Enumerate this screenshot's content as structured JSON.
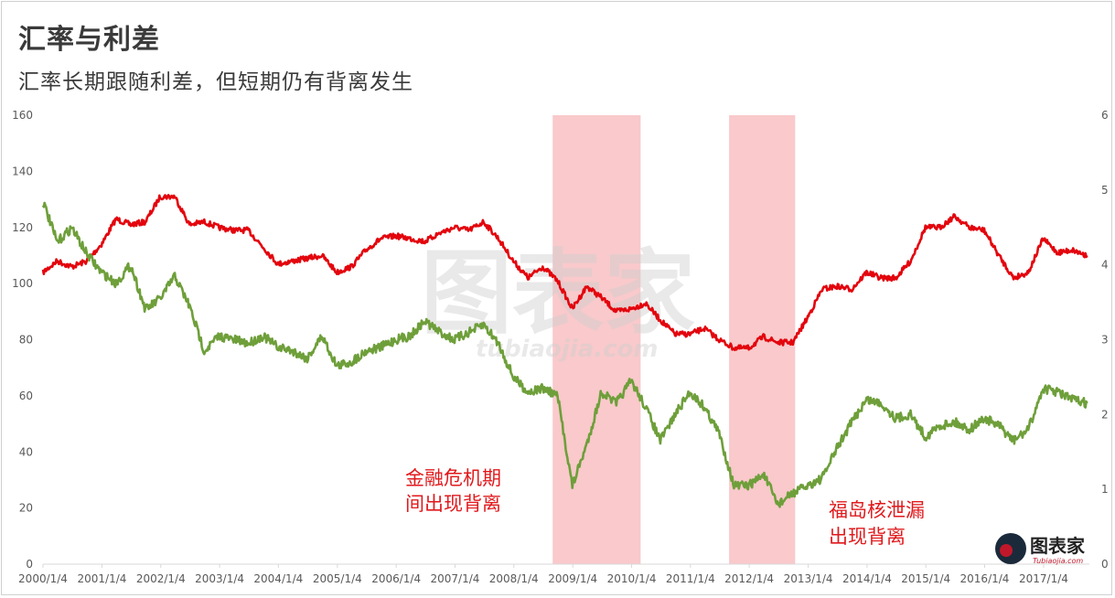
{
  "title": "汇率与利差",
  "subtitle": "汇率长期跟随利差，但短期仍有背离发生",
  "annotations": {
    "crisis": [
      "金融危机期",
      "间出现背离"
    ],
    "fukushima": [
      "福岛核泄漏",
      "出现背离"
    ]
  },
  "watermark": {
    "main": "图表家",
    "sub": "tubiaojia.com"
  },
  "logo": {
    "name": "图表家",
    "sub": "Tubiaojia.com"
  },
  "colors": {
    "fx_line": "#e3050d",
    "spread_line": "#6e9f3a",
    "highlight": "#f9c9cb",
    "annotation": "#e0191c",
    "axis": "#d9d9d9"
  },
  "chart_data": {
    "type": "line",
    "x_type": "date",
    "x_ticks": [
      "2000/1/4",
      "2001/1/4",
      "2002/1/4",
      "2003/1/4",
      "2004/1/4",
      "2005/1/4",
      "2006/1/4",
      "2007/1/4",
      "2008/1/4",
      "2009/1/4",
      "2010/1/4",
      "2011/1/4",
      "2012/1/4",
      "2013/1/4",
      "2014/1/4",
      "2015/1/4",
      "2016/1/4",
      "2017/1/4"
    ],
    "x_range": [
      "2000-01-04",
      "2017-10-15"
    ],
    "y_left": {
      "range": [
        0,
        160
      ],
      "ticks": [
        "0",
        "20",
        "40",
        "60",
        "80",
        "100",
        "120",
        "140",
        "160"
      ]
    },
    "y_right": {
      "range": [
        0,
        6
      ],
      "ticks": [
        "0",
        "1",
        "2",
        "3",
        "4",
        "5",
        "6"
      ]
    },
    "shaded_periods": [
      {
        "start": "2008-09-01",
        "end": "2010-03-01"
      },
      {
        "start": "2011-09-01",
        "end": "2012-10-15"
      }
    ],
    "series": [
      {
        "axis": "left",
        "color": "#e3050d",
        "points": [
          [
            "2000-01-04",
            104
          ],
          [
            "2000-04-01",
            108
          ],
          [
            "2000-07-01",
            106
          ],
          [
            "2000-10-01",
            108
          ],
          [
            "2001-01-01",
            114
          ],
          [
            "2001-04-01",
            123
          ],
          [
            "2001-07-01",
            121
          ],
          [
            "2001-10-01",
            122
          ],
          [
            "2002-01-01",
            131
          ],
          [
            "2002-04-01",
            131
          ],
          [
            "2002-07-01",
            121
          ],
          [
            "2002-10-01",
            122
          ],
          [
            "2003-01-01",
            120
          ],
          [
            "2003-04-01",
            119
          ],
          [
            "2003-07-01",
            119
          ],
          [
            "2003-10-01",
            113
          ],
          [
            "2004-01-01",
            107
          ],
          [
            "2004-04-01",
            108
          ],
          [
            "2004-07-01",
            109
          ],
          [
            "2004-10-01",
            110
          ],
          [
            "2005-01-01",
            104
          ],
          [
            "2005-04-01",
            106
          ],
          [
            "2005-07-01",
            112
          ],
          [
            "2005-10-01",
            116
          ],
          [
            "2006-01-01",
            117
          ],
          [
            "2006-04-01",
            116
          ],
          [
            "2006-07-01",
            115
          ],
          [
            "2006-10-01",
            118
          ],
          [
            "2007-01-01",
            120
          ],
          [
            "2007-04-01",
            119
          ],
          [
            "2007-07-01",
            122
          ],
          [
            "2007-10-01",
            116
          ],
          [
            "2008-01-01",
            108
          ],
          [
            "2008-04-01",
            102
          ],
          [
            "2008-07-01",
            106
          ],
          [
            "2008-10-01",
            101
          ],
          [
            "2009-01-01",
            91
          ],
          [
            "2009-04-01",
            99
          ],
          [
            "2009-07-01",
            95
          ],
          [
            "2009-10-01",
            90
          ],
          [
            "2010-01-01",
            91
          ],
          [
            "2010-04-01",
            93
          ],
          [
            "2010-07-01",
            87
          ],
          [
            "2010-10-01",
            82
          ],
          [
            "2011-01-01",
            82
          ],
          [
            "2011-04-01",
            84
          ],
          [
            "2011-07-01",
            80
          ],
          [
            "2011-10-01",
            77
          ],
          [
            "2012-01-01",
            77
          ],
          [
            "2012-04-01",
            81
          ],
          [
            "2012-07-01",
            79
          ],
          [
            "2012-10-01",
            79
          ],
          [
            "2013-01-01",
            88
          ],
          [
            "2013-04-01",
            98
          ],
          [
            "2013-07-01",
            99
          ],
          [
            "2013-10-01",
            98
          ],
          [
            "2014-01-01",
            104
          ],
          [
            "2014-04-01",
            102
          ],
          [
            "2014-07-01",
            102
          ],
          [
            "2014-10-01",
            108
          ],
          [
            "2015-01-01",
            120
          ],
          [
            "2015-04-01",
            120
          ],
          [
            "2015-07-01",
            124
          ],
          [
            "2015-10-01",
            120
          ],
          [
            "2016-01-01",
            119
          ],
          [
            "2016-04-01",
            110
          ],
          [
            "2016-07-01",
            102
          ],
          [
            "2016-10-01",
            104
          ],
          [
            "2017-01-01",
            116
          ],
          [
            "2017-04-01",
            111
          ],
          [
            "2017-07-01",
            112
          ],
          [
            "2017-10-01",
            110
          ]
        ]
      },
      {
        "axis": "right",
        "color": "#6e9f3a",
        "points": [
          [
            "2000-01-04",
            4.85
          ],
          [
            "2000-04-01",
            4.3
          ],
          [
            "2000-07-01",
            4.5
          ],
          [
            "2000-10-01",
            4.15
          ],
          [
            "2001-01-01",
            3.9
          ],
          [
            "2001-04-01",
            3.75
          ],
          [
            "2001-07-01",
            4.0
          ],
          [
            "2001-10-01",
            3.4
          ],
          [
            "2002-01-01",
            3.55
          ],
          [
            "2002-04-01",
            3.85
          ],
          [
            "2002-07-01",
            3.45
          ],
          [
            "2002-10-01",
            2.85
          ],
          [
            "2003-01-01",
            3.05
          ],
          [
            "2003-04-01",
            3.0
          ],
          [
            "2003-07-01",
            2.95
          ],
          [
            "2003-10-01",
            3.05
          ],
          [
            "2004-01-01",
            2.9
          ],
          [
            "2004-04-01",
            2.85
          ],
          [
            "2004-07-01",
            2.75
          ],
          [
            "2004-10-01",
            3.05
          ],
          [
            "2005-01-01",
            2.65
          ],
          [
            "2005-04-01",
            2.7
          ],
          [
            "2005-07-01",
            2.85
          ],
          [
            "2005-10-01",
            2.9
          ],
          [
            "2006-01-01",
            3.0
          ],
          [
            "2006-04-01",
            3.05
          ],
          [
            "2006-07-01",
            3.25
          ],
          [
            "2006-10-01",
            3.1
          ],
          [
            "2007-01-01",
            3.0
          ],
          [
            "2007-04-01",
            3.1
          ],
          [
            "2007-07-01",
            3.2
          ],
          [
            "2007-10-01",
            2.95
          ],
          [
            "2008-01-01",
            2.5
          ],
          [
            "2008-04-01",
            2.3
          ],
          [
            "2008-07-01",
            2.35
          ],
          [
            "2008-10-01",
            2.25
          ],
          [
            "2009-01-01",
            1.05
          ],
          [
            "2009-04-01",
            1.6
          ],
          [
            "2009-07-01",
            2.3
          ],
          [
            "2009-10-01",
            2.15
          ],
          [
            "2010-01-01",
            2.45
          ],
          [
            "2010-04-01",
            2.1
          ],
          [
            "2010-07-01",
            1.65
          ],
          [
            "2010-10-01",
            2.0
          ],
          [
            "2011-01-01",
            2.3
          ],
          [
            "2011-04-01",
            2.1
          ],
          [
            "2011-07-01",
            1.75
          ],
          [
            "2011-10-01",
            1.05
          ],
          [
            "2012-01-01",
            1.05
          ],
          [
            "2012-04-01",
            1.2
          ],
          [
            "2012-07-01",
            0.8
          ],
          [
            "2012-10-01",
            0.95
          ],
          [
            "2013-01-01",
            1.05
          ],
          [
            "2013-04-01",
            1.15
          ],
          [
            "2013-07-01",
            1.55
          ],
          [
            "2013-10-01",
            1.9
          ],
          [
            "2014-01-01",
            2.2
          ],
          [
            "2014-04-01",
            2.15
          ],
          [
            "2014-07-01",
            1.95
          ],
          [
            "2014-10-01",
            2.0
          ],
          [
            "2015-01-01",
            1.7
          ],
          [
            "2015-04-01",
            1.85
          ],
          [
            "2015-07-01",
            1.9
          ],
          [
            "2015-10-01",
            1.8
          ],
          [
            "2016-01-01",
            1.95
          ],
          [
            "2016-04-01",
            1.85
          ],
          [
            "2016-07-01",
            1.65
          ],
          [
            "2016-10-01",
            1.8
          ],
          [
            "2017-01-01",
            2.35
          ],
          [
            "2017-04-01",
            2.3
          ],
          [
            "2017-07-01",
            2.2
          ],
          [
            "2017-10-01",
            2.15
          ]
        ]
      }
    ]
  }
}
